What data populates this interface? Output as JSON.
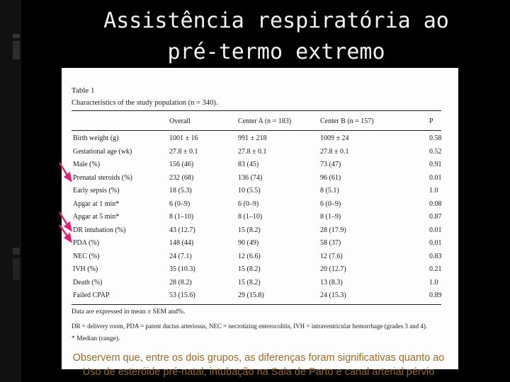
{
  "slide": {
    "title_line1": "Assistência respiratória ao",
    "title_line2": "pré-termo extremo",
    "caption_line1": "Observem que, entre os dois grupos, as diferenças foram significativas quanto ao",
    "caption_line2": "Uso de esteróide pré-natal, intubação na Sala de Parto e canal arterial pérvio"
  },
  "table": {
    "label": "Table 1",
    "caption": "Characteristics of the study population (n = 340).",
    "columns": [
      "",
      "Overall",
      "Center A (n = 183)",
      "Center B (n = 157)",
      "P"
    ],
    "rows": [
      [
        "Birth weight (g)",
        "1001 ± 16",
        "991 ± 218",
        "1009 ± 24",
        "0.58"
      ],
      [
        "Gestational age (wk)",
        "27.8 ± 0.1",
        "27.8 ± 0.1",
        "27.8 ± 0.1",
        "0.52"
      ],
      [
        "Male (%)",
        "156 (46)",
        "83 (45)",
        "73 (47)",
        "0.91"
      ],
      [
        "Prenatal steroids (%)",
        "232 (68)",
        "136 (74)",
        "96 (61)",
        "0.01"
      ],
      [
        "Early sepsis (%)",
        "18 (5.3)",
        "10 (5.5)",
        "8 (5.1)",
        "1.0"
      ],
      [
        "Apgar at 1 min*",
        "6 (0–9)",
        "6 (0–9)",
        "6 (0–9)",
        "0.08"
      ],
      [
        "Apgar at 5 min*",
        "8 (1–10)",
        "8 (1–10)",
        "8 (1–9)",
        "0.87"
      ],
      [
        "DR intubation (%)",
        "43 (12.7)",
        "15 (8.2)",
        "28 (17.9)",
        "0.01"
      ],
      [
        "PDA (%)",
        "148 (44)",
        "90 (49)",
        "58 (37)",
        "0.01"
      ],
      [
        "NEC (%)",
        "24 (7.1)",
        "12 (6.6)",
        "12 (7.6)",
        "0.83"
      ],
      [
        "IVH (%)",
        "35 (10.3)",
        "15 (8.2)",
        "20 (12.7)",
        "0.21"
      ],
      [
        "Death (%)",
        "28 (8.2)",
        "15 (8.2)",
        "13 (8.3)",
        "1.0"
      ],
      [
        "Failed CPAP",
        "53 (15.6)",
        "29 (15.8)",
        "24 (15.3)",
        "0.89"
      ]
    ],
    "footnote1": "Data are expressed in mean ± SEM and%.",
    "footnote2": "DR = delivery room, PDA = patent ductus arteriosus, NEC = necrotizing enterocolitis, IVH = intraventricular hemorrhage (grades 3 and 4).",
    "footnote3": "* Median (range)."
  },
  "colors": {
    "background": "#000000",
    "title": "#f2f2f2",
    "caption": "#9c6a29",
    "arrow": "#e0207a"
  }
}
